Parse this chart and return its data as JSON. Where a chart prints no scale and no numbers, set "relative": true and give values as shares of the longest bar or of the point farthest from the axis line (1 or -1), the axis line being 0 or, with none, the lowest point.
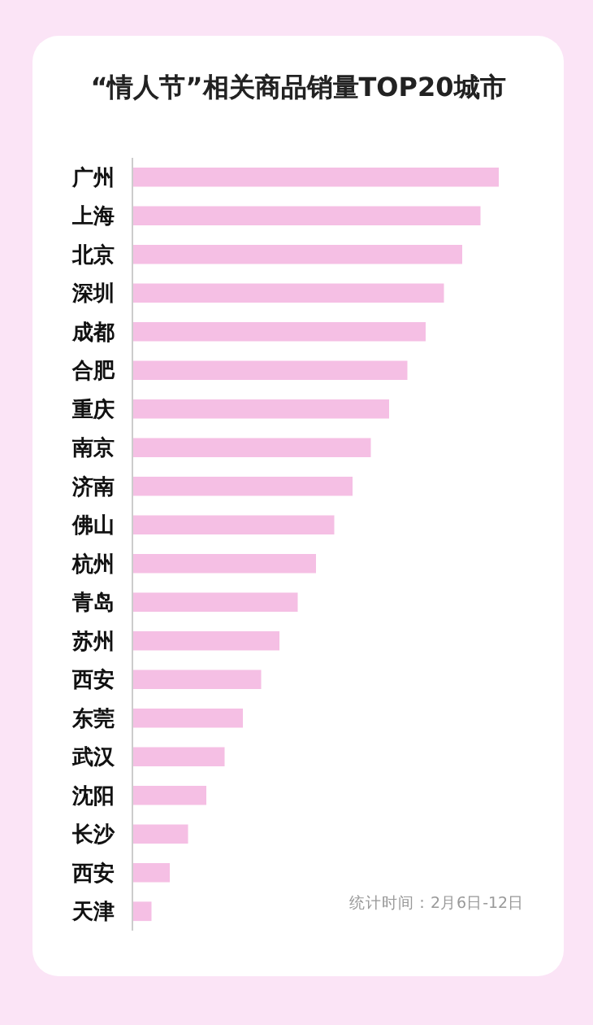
{
  "chart_data": {
    "type": "bar",
    "orientation": "horizontal",
    "relative": true,
    "title": "“情人节”相关商品销量TOP20城市",
    "categories": [
      "广州",
      "上海",
      "北京",
      "深圳",
      "成都",
      "合肥",
      "重庆",
      "南京",
      "济南",
      "佛山",
      "杭州",
      "青岛",
      "苏州",
      "西安",
      "东莞",
      "武汉",
      "沈阳",
      "长沙",
      "西安",
      "天津"
    ],
    "values": [
      1,
      0.95,
      0.9,
      0.85,
      0.8,
      0.75,
      0.7,
      0.65,
      0.6,
      0.55,
      0.5,
      0.45,
      0.4,
      0.35,
      0.3,
      0.25,
      0.2,
      0.15,
      0.1,
      0.05
    ],
    "color": "#f5bfe4",
    "annotations": [
      "统计时间：2月6日-12日"
    ]
  }
}
